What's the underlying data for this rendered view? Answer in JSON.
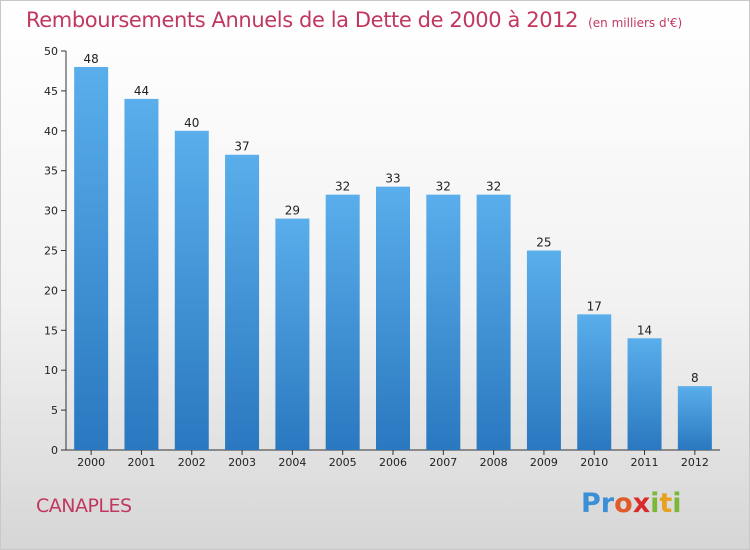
{
  "title": "Remboursements Annuels de la Dette de 2000 à 2012",
  "unit": "(en milliers d'€)",
  "commune": "CANAPLES",
  "logo": {
    "letters": [
      "P",
      "r",
      "o",
      "x",
      "i",
      "t",
      "i"
    ],
    "colors": [
      "#3a8fd6",
      "#3a8fd6",
      "#e05a2a",
      "#d92b2b",
      "#7bb83a",
      "#e6a21c",
      "#7bb83a"
    ]
  },
  "colors": {
    "bar_top": "#5aaeeb",
    "bar_bottom": "#2a78c0",
    "title": "#c0385f"
  },
  "chart_data": {
    "type": "bar",
    "categories": [
      "2000",
      "2001",
      "2002",
      "2003",
      "2004",
      "2005",
      "2006",
      "2007",
      "2008",
      "2009",
      "2010",
      "2011",
      "2012"
    ],
    "values": [
      48,
      44,
      40,
      37,
      29,
      32,
      33,
      32,
      32,
      25,
      17,
      14,
      8
    ],
    "data_labels": [
      "48",
      "44",
      "40",
      "37",
      "29",
      "32",
      "33",
      "32",
      "32",
      "25",
      "17",
      "14",
      "8"
    ],
    "y_ticks": [
      "0",
      "5",
      "10",
      "15",
      "20",
      "25",
      "30",
      "35",
      "40",
      "45",
      "50"
    ],
    "ylim": [
      0,
      50
    ],
    "grid": false
  }
}
